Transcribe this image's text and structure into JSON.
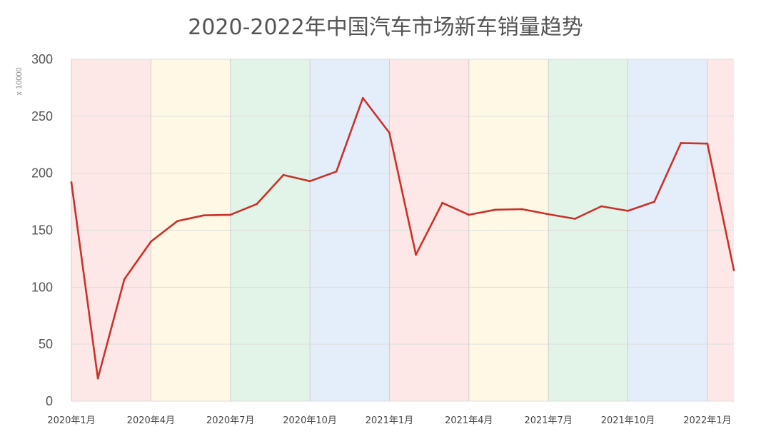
{
  "chart_data": {
    "type": "line",
    "title": "2020-2022年中国汽车市场新车销量趋势",
    "y_unit_label": "x 10000",
    "ylim": [
      0,
      300
    ],
    "yticks": [
      0,
      50,
      100,
      150,
      200,
      250,
      300
    ],
    "grid": true,
    "x_tick_labels": [
      "2020年1月",
      "2020年4月",
      "2020年7月",
      "2020年10月",
      "2021年1月",
      "2021年4月",
      "2021年7月",
      "2021年10月",
      "2022年1月"
    ],
    "x": [
      "2020-01",
      "2020-02",
      "2020-03",
      "2020-04",
      "2020-05",
      "2020-06",
      "2020-07",
      "2020-08",
      "2020-09",
      "2020-10",
      "2020-11",
      "2020-12",
      "2021-01",
      "2021-02",
      "2021-03",
      "2021-04",
      "2021-05",
      "2021-06",
      "2021-07",
      "2021-08",
      "2021-09",
      "2021-10",
      "2021-11",
      "2021-12",
      "2022-01",
      "2022-02"
    ],
    "series": [
      {
        "values": [
          192,
          20,
          107,
          140,
          158,
          163,
          163.5,
          173,
          198.5,
          193,
          201.5,
          266,
          235.5,
          128.5,
          174,
          163.5,
          168,
          168.5,
          164,
          160,
          171,
          167,
          175,
          226.5,
          226,
          115
        ],
        "color": "#c8322a"
      }
    ],
    "quarter_band_colors": [
      "#fde7e7",
      "#fef8e5",
      "#e2f4e7",
      "#e3eefa"
    ]
  }
}
